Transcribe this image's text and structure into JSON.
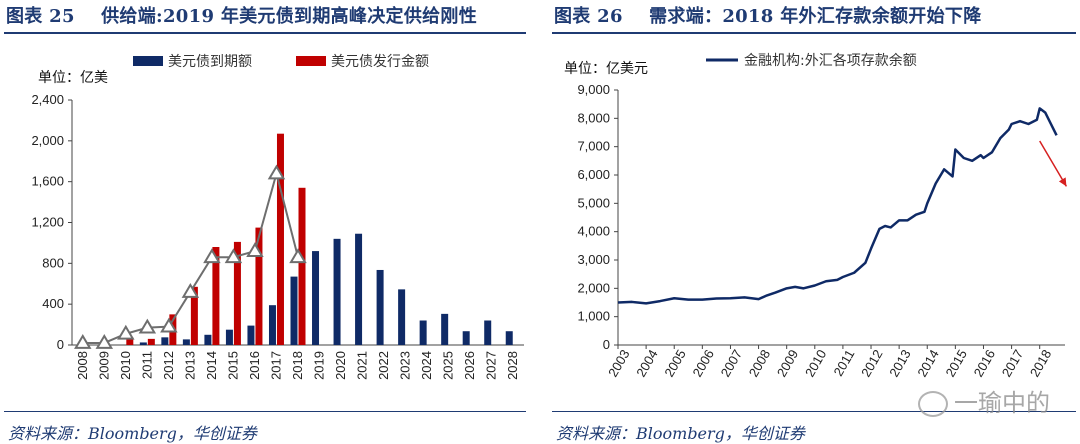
{
  "chart_data": [
    {
      "type": "bar",
      "figure_label": "图表 25",
      "title": "供给端:2019 年美元债到期高峰决定供给刚性",
      "unit_label": "单位：亿美",
      "categories": [
        "2008",
        "2009",
        "2010",
        "2011",
        "2012",
        "2013",
        "2014",
        "2015",
        "2016",
        "2017",
        "2018",
        "2019",
        "2020",
        "2021",
        "2022",
        "2023",
        "2024",
        "2025",
        "2026",
        "2027",
        "2028"
      ],
      "series": [
        {
          "name": "美元债到期额",
          "color": "#0f2a66",
          "values": [
            0,
            0,
            0,
            25,
            75,
            55,
            100,
            150,
            190,
            390,
            670,
            920,
            1040,
            1090,
            735,
            545,
            240,
            305,
            135,
            240,
            135
          ]
        },
        {
          "name": "美元债发行金额",
          "color": "#c00000",
          "values": [
            0,
            0,
            75,
            60,
            300,
            570,
            960,
            1010,
            1150,
            2070,
            1540,
            null,
            null,
            null,
            null,
            null,
            null,
            null,
            null,
            null,
            null
          ]
        },
        {
          "name": "",
          "color": "#6e6e6e",
          "style": "line-triangle",
          "values": [
            20,
            20,
            110,
            170,
            180,
            520,
            860,
            860,
            920,
            1680,
            860,
            null,
            null,
            null,
            null,
            null,
            null,
            null,
            null,
            null,
            null
          ]
        }
      ],
      "ylim": [
        0,
        2400
      ],
      "yticks": [
        "0",
        "400",
        "800",
        "1,200",
        "1,600",
        "2,000",
        "2,400"
      ],
      "ytick_values": [
        0,
        400,
        800,
        1200,
        1600,
        2000,
        2400
      ],
      "source": "资料来源：Bloomberg，华创证券"
    },
    {
      "type": "line",
      "figure_label": "图表 26",
      "title": "需求端：2018 年外汇存款余额开始下降",
      "unit_label": "单位：亿美元",
      "series": [
        {
          "name": "金融机构:外汇各项存款余额",
          "color": "#0f2a66",
          "x": [
            2003.0,
            2003.5,
            2004.0,
            2004.5,
            2005.0,
            2005.5,
            2006.0,
            2006.5,
            2007.0,
            2007.5,
            2008.0,
            2008.3,
            2008.6,
            2009.0,
            2009.3,
            2009.6,
            2010.0,
            2010.4,
            2010.8,
            2011.0,
            2011.4,
            2011.8,
            2012.0,
            2012.3,
            2012.5,
            2012.7,
            2013.0,
            2013.3,
            2013.6,
            2013.9,
            2014.0,
            2014.3,
            2014.6,
            2014.9,
            2015.0,
            2015.3,
            2015.6,
            2015.9,
            2016.0,
            2016.3,
            2016.6,
            2016.9,
            2017.0,
            2017.3,
            2017.6,
            2017.9,
            2018.0,
            2018.2,
            2018.4,
            2018.6
          ],
          "values": [
            1500,
            1520,
            1470,
            1550,
            1650,
            1600,
            1600,
            1640,
            1650,
            1680,
            1620,
            1750,
            1850,
            2000,
            2050,
            2000,
            2100,
            2250,
            2300,
            2400,
            2550,
            2900,
            3400,
            4100,
            4200,
            4150,
            4400,
            4400,
            4600,
            4700,
            5000,
            5700,
            6200,
            5950,
            6900,
            6600,
            6500,
            6700,
            6600,
            6800,
            7300,
            7600,
            7800,
            7900,
            7800,
            7950,
            8350,
            8200,
            7800,
            7400
          ]
        }
      ],
      "xlim": [
        2003,
        2018.9
      ],
      "xticks": [
        "2003",
        "2004",
        "2005",
        "2006",
        "2007",
        "2008",
        "2009",
        "2010",
        "2011",
        "2012",
        "2013",
        "2014",
        "2015",
        "2016",
        "2017",
        "2018"
      ],
      "ylim": [
        0,
        9000
      ],
      "yticks": [
        "0",
        "1,000",
        "2,000",
        "3,000",
        "4,000",
        "5,000",
        "6,000",
        "7,000",
        "8,000",
        "9,000"
      ],
      "ytick_values": [
        0,
        1000,
        2000,
        3000,
        4000,
        5000,
        6000,
        7000,
        8000,
        9000
      ],
      "annotation": {
        "type": "arrow",
        "color": "#d62020",
        "meaning": "declining trend"
      },
      "source": "资料来源：Bloomberg，华创证券"
    }
  ],
  "watermark": {
    "text": "一瑜中的",
    "icon": "wechat-icon"
  }
}
